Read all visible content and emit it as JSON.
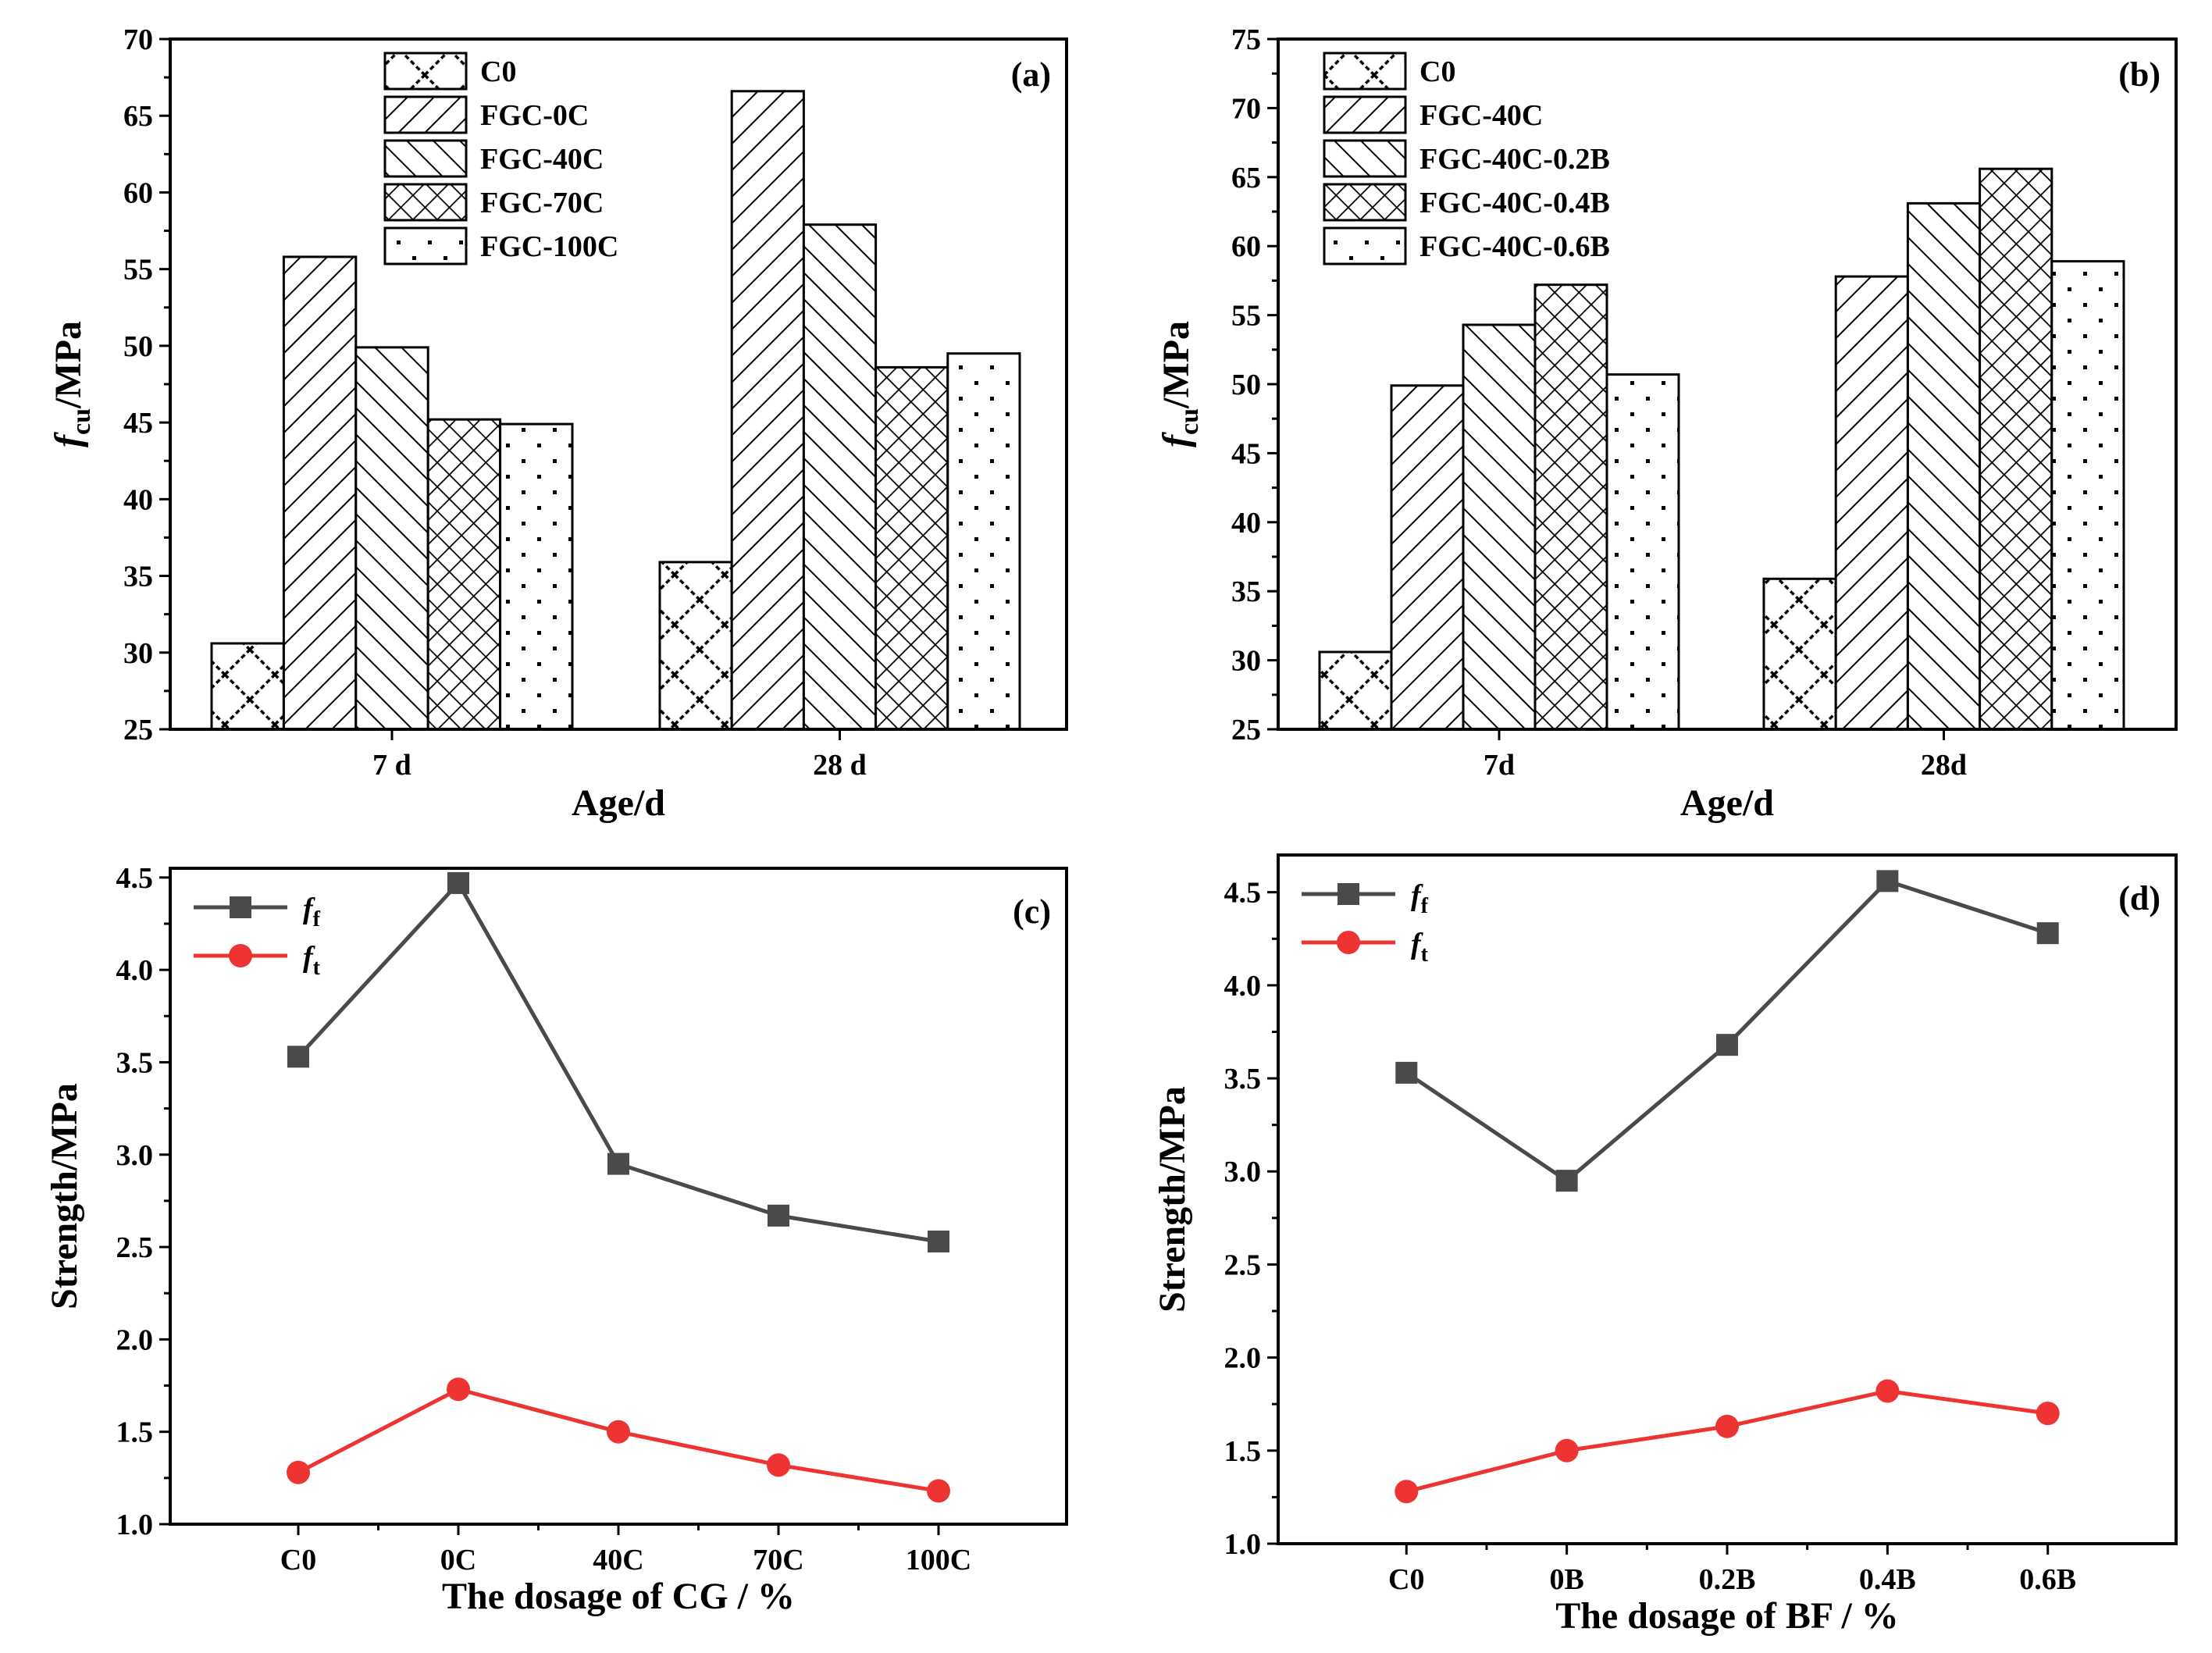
{
  "chart_data": [
    {
      "id": "a",
      "type": "bar",
      "panel_label": "(a)",
      "categories": [
        "7 d",
        "28 d"
      ],
      "series": [
        {
          "name": "C0",
          "pattern": "hatch-diamond",
          "values": [
            30.6,
            35.9
          ]
        },
        {
          "name": "FGC-0C",
          "pattern": "hatch-fwd",
          "values": [
            55.8,
            66.6
          ]
        },
        {
          "name": "FGC-40C",
          "pattern": "hatch-back",
          "values": [
            49.9,
            57.9
          ]
        },
        {
          "name": "FGC-70C",
          "pattern": "hatch-cross",
          "values": [
            45.2,
            48.6
          ]
        },
        {
          "name": "FGC-100C",
          "pattern": "hatch-dots",
          "values": [
            44.9,
            49.5
          ]
        }
      ],
      "ylabel_main": "f",
      "ylabel_sub": "cu",
      "ylabel_rest": "/MPa",
      "xlabel": "Age/d",
      "ylim": [
        25,
        70
      ],
      "yticks": [
        25,
        30,
        35,
        40,
        45,
        50,
        55,
        60,
        65,
        70
      ],
      "legend_position": "top-center"
    },
    {
      "id": "b",
      "type": "bar",
      "panel_label": "(b)",
      "categories": [
        "7d",
        "28d"
      ],
      "series": [
        {
          "name": "C0",
          "pattern": "hatch-diamond",
          "values": [
            30.6,
            35.9
          ]
        },
        {
          "name": "FGC-40C",
          "pattern": "hatch-fwd",
          "values": [
            49.9,
            57.8
          ]
        },
        {
          "name": "FGC-40C-0.2B",
          "pattern": "hatch-back",
          "values": [
            54.3,
            63.1
          ]
        },
        {
          "name": "FGC-40C-0.4B",
          "pattern": "hatch-cross",
          "values": [
            57.2,
            65.6
          ]
        },
        {
          "name": "FGC-40C-0.6B",
          "pattern": "hatch-dots",
          "values": [
            50.7,
            58.9
          ]
        }
      ],
      "ylabel_main": "f",
      "ylabel_sub": "cu",
      "ylabel_rest": "/MPa",
      "xlabel": "Age/d",
      "ylim": [
        25,
        75
      ],
      "yticks": [
        25,
        30,
        35,
        40,
        45,
        50,
        55,
        60,
        65,
        70,
        75
      ],
      "legend_position": "top-left"
    },
    {
      "id": "c",
      "type": "line",
      "panel_label": "(c)",
      "categories": [
        "C0",
        "0C",
        "40C",
        "70C",
        "100C"
      ],
      "series": [
        {
          "name_main": "f",
          "name_sub": "f",
          "color": "#4a4a4a",
          "marker": "square",
          "values": [
            3.53,
            4.47,
            2.95,
            2.67,
            2.53
          ]
        },
        {
          "name_main": "f",
          "name_sub": "t",
          "color": "#ee3333",
          "marker": "circle",
          "values": [
            1.28,
            1.73,
            1.5,
            1.32,
            1.18
          ]
        }
      ],
      "ylabel": "Strength/MPa",
      "xlabel": "The dosage of CG / %",
      "ylim": [
        1.0,
        4.55
      ],
      "yticks": [
        1.0,
        1.5,
        2.0,
        2.5,
        3.0,
        3.5,
        4.0,
        4.5
      ],
      "ytick_labels": [
        "1.0",
        "1.5",
        "2.0",
        "2.5",
        "3.0",
        "3.5",
        "4.0",
        "4.5"
      ],
      "legend_position": "top-left"
    },
    {
      "id": "d",
      "type": "line",
      "panel_label": "(d)",
      "categories": [
        "C0",
        "0B",
        "0.2B",
        "0.4B",
        "0.6B"
      ],
      "series": [
        {
          "name_main": "f",
          "name_sub": "f",
          "color": "#4a4a4a",
          "marker": "square",
          "values": [
            3.53,
            2.95,
            3.68,
            4.56,
            4.28
          ]
        },
        {
          "name_main": "f",
          "name_sub": "t",
          "color": "#ee3333",
          "marker": "circle",
          "values": [
            1.28,
            1.5,
            1.63,
            1.82,
            1.7
          ]
        }
      ],
      "ylabel": "Strength/MPa",
      "xlabel": "The dosage of BF / %",
      "ylim": [
        1.0,
        4.7
      ],
      "yticks": [
        1.0,
        1.5,
        2.0,
        2.5,
        3.0,
        3.5,
        4.0,
        4.5
      ],
      "ytick_labels": [
        "1.0",
        "1.5",
        "2.0",
        "2.5",
        "3.0",
        "3.5",
        "4.0",
        "4.5"
      ],
      "legend_position": "top-left"
    }
  ]
}
